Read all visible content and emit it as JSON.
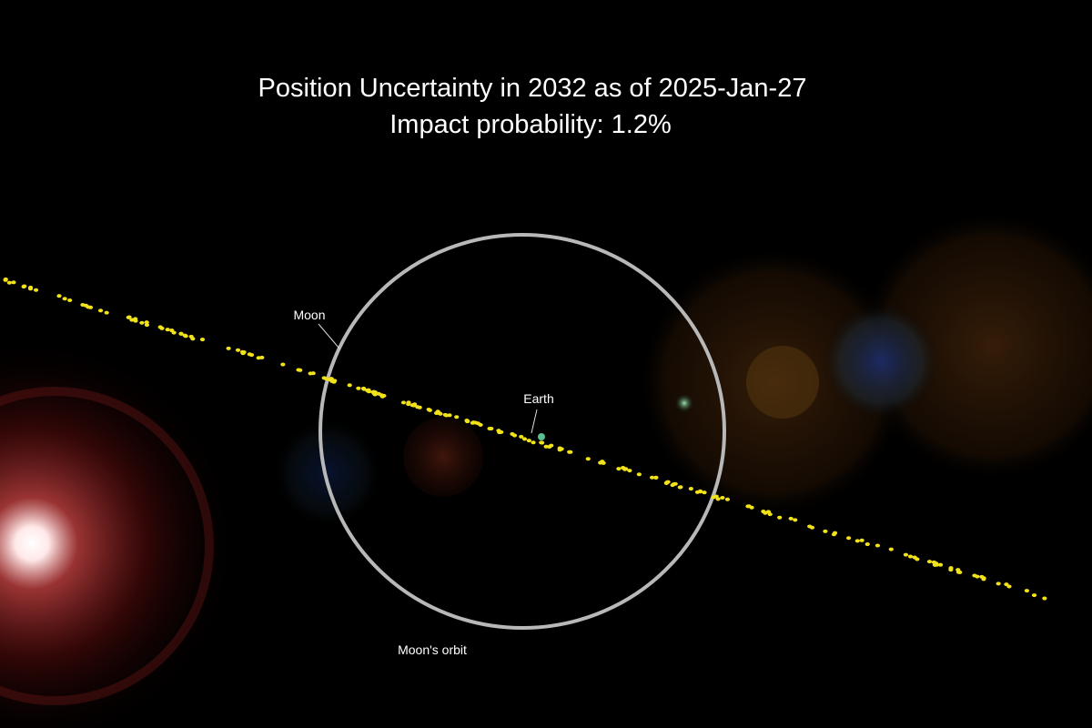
{
  "title": {
    "line1": "Position Uncertainty in 2032 as of 2025-Jan-27",
    "line2": "Impact probability: 1.2%"
  },
  "labels": {
    "moon": "Moon",
    "earth": "Earth",
    "orbit": "Moon's orbit"
  }
}
